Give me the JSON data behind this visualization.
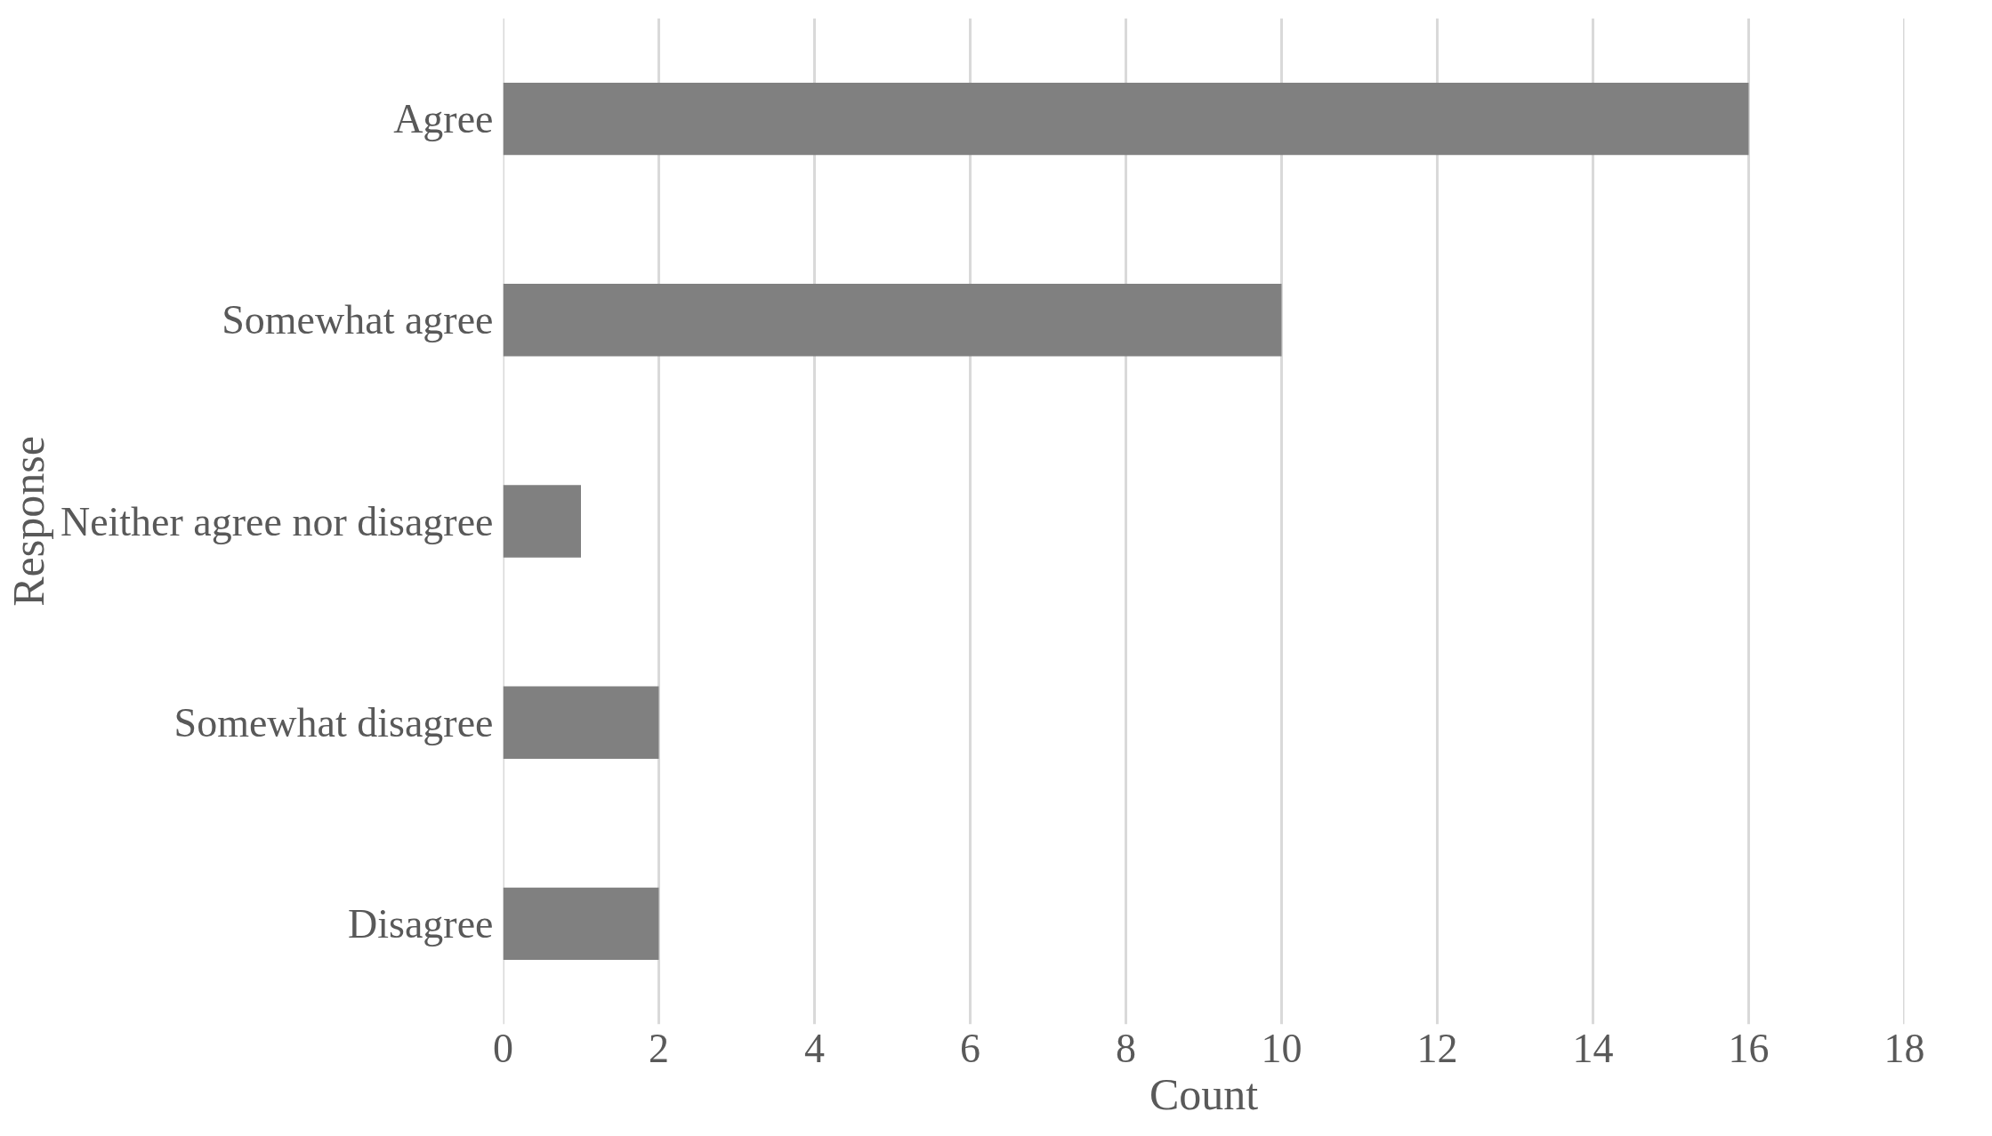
{
  "chart_data": {
    "type": "bar",
    "orientation": "horizontal",
    "xlabel": "Count",
    "ylabel": "Response",
    "categories": [
      "Agree",
      "Somewhat agree",
      "Neither agree nor disagree",
      "Somewhat disagree",
      "Disagree"
    ],
    "values": [
      16,
      10,
      1,
      2,
      2
    ],
    "color": "#808080",
    "xlim": [
      0,
      18
    ],
    "xticks": [
      0,
      2,
      4,
      6,
      8,
      10,
      12,
      14,
      16,
      18
    ],
    "grid": "x"
  }
}
